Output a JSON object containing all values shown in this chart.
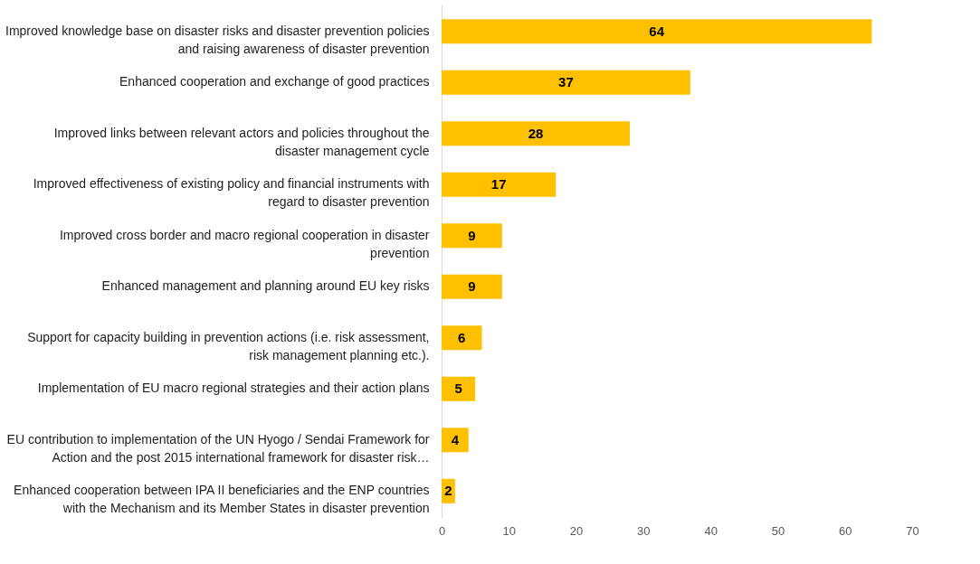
{
  "chart_data": {
    "type": "bar",
    "orientation": "horizontal",
    "categories": [
      "Improved knowledge base on disaster risks and disaster prevention policies and raising awareness of disaster prevention",
      "Enhanced cooperation and exchange of good practices",
      "Improved links between relevant actors and policies throughout the disaster management cycle",
      "Improved effectiveness of existing policy and financial instruments with regard to disaster prevention",
      "Improved cross border and macro regional cooperation in disaster prevention",
      "Enhanced management and planning around EU key risks",
      "Support for capacity building in prevention actions (i.e. risk assessment, risk management planning etc.).",
      "Implementation of EU macro regional strategies and their action plans",
      "EU contribution to implementation of the UN Hyogo / Sendai Framework for Action and the post 2015 international framework for disaster risk…",
      "Enhanced cooperation between IPA II beneficiaries and the ENP countries with the Mechanism and its Member States in disaster prevention"
    ],
    "values": [
      64,
      37,
      28,
      17,
      9,
      9,
      6,
      5,
      4,
      2
    ],
    "color": "#ffc000",
    "xlim": [
      0,
      70
    ],
    "xticks": [
      0,
      10,
      20,
      30,
      40,
      50,
      60,
      70
    ],
    "data_labels": true,
    "grid": false
  }
}
